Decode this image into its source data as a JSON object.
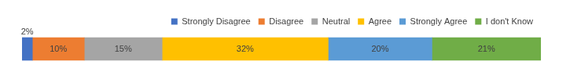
{
  "chart_data": {
    "type": "bar",
    "orientation": "horizontal",
    "stacked": true,
    "categories": [
      null
    ],
    "series": [
      {
        "name": "Strongly Disagree",
        "color": "#4472c4",
        "values": [
          2
        ],
        "value_labels": [
          "2%"
        ]
      },
      {
        "name": "Disagree",
        "color": "#ed7d31",
        "values": [
          10
        ],
        "value_labels": [
          "10%"
        ]
      },
      {
        "name": "Neutral",
        "color": "#a5a5a5",
        "values": [
          15
        ],
        "value_labels": [
          "15%"
        ]
      },
      {
        "name": "Agree",
        "color": "#ffc000",
        "values": [
          32
        ],
        "value_labels": [
          "32%"
        ]
      },
      {
        "name": "Strongly Agree",
        "color": "#5b9bd5",
        "values": [
          20
        ],
        "value_labels": [
          "20%"
        ]
      },
      {
        "name": "I don't Know",
        "color": "#70ad47",
        "values": [
          21
        ],
        "value_labels": [
          "21%"
        ]
      }
    ],
    "xlim": [
      0,
      100
    ],
    "tick_labels": false,
    "grid": false,
    "legend": "top-right",
    "data_labels": true
  }
}
